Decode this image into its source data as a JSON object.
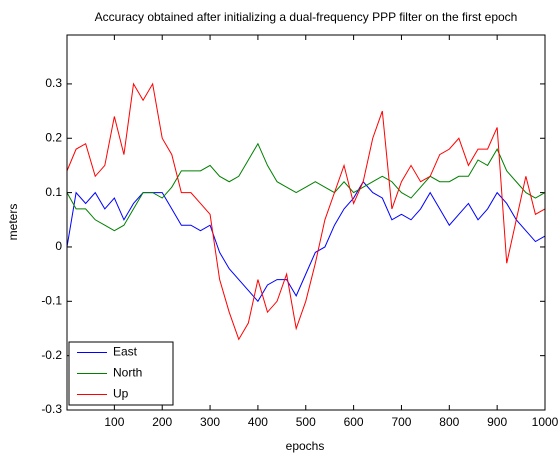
{
  "chart_data": {
    "type": "line",
    "title": "Accuracy obtained after initializing a dual-frequency PPP filter on the first epoch",
    "x_label": "epochs",
    "y_label": "meters",
    "x": [
      1,
      20,
      40,
      60,
      80,
      100,
      120,
      140,
      160,
      180,
      200,
      220,
      240,
      260,
      280,
      300,
      320,
      340,
      360,
      380,
      400,
      420,
      440,
      460,
      480,
      500,
      520,
      540,
      560,
      580,
      600,
      620,
      640,
      660,
      680,
      700,
      720,
      740,
      760,
      780,
      800,
      820,
      840,
      860,
      880,
      900,
      920,
      940,
      960,
      980,
      1000
    ],
    "series": [
      {
        "name": "East",
        "color": "#0000ff",
        "values": [
          0,
          0.1,
          0.08,
          0.1,
          0.07,
          0.09,
          0.05,
          0.08,
          0.1,
          0.1,
          0.1,
          0.07,
          0.04,
          0.04,
          0.03,
          0.04,
          -0.01,
          -0.04,
          -0.06,
          -0.08,
          -0.1,
          -0.07,
          -0.06,
          -0.06,
          -0.09,
          -0.05,
          -0.01,
          0,
          0.04,
          0.07,
          0.09,
          0.12,
          0.1,
          0.09,
          0.05,
          0.06,
          0.05,
          0.07,
          0.1,
          0.07,
          0.04,
          0.06,
          0.08,
          0.05,
          0.07,
          0.1,
          0.08,
          0.05,
          0.03,
          0.01,
          0.02
        ]
      },
      {
        "name": "North",
        "color": "#008000",
        "values": [
          0.1,
          0.07,
          0.07,
          0.05,
          0.04,
          0.03,
          0.04,
          0.07,
          0.1,
          0.1,
          0.09,
          0.11,
          0.14,
          0.14,
          0.14,
          0.15,
          0.13,
          0.12,
          0.13,
          0.16,
          0.19,
          0.15,
          0.12,
          0.11,
          0.1,
          0.11,
          0.12,
          0.11,
          0.1,
          0.12,
          0.1,
          0.11,
          0.12,
          0.13,
          0.12,
          0.1,
          0.09,
          0.11,
          0.13,
          0.12,
          0.12,
          0.13,
          0.13,
          0.16,
          0.15,
          0.18,
          0.14,
          0.12,
          0.1,
          0.09,
          0.1
        ]
      },
      {
        "name": "Up",
        "color": "#ff0000",
        "values": [
          0.14,
          0.18,
          0.19,
          0.13,
          0.15,
          0.24,
          0.17,
          0.3,
          0.27,
          0.3,
          0.2,
          0.17,
          0.1,
          0.1,
          0.08,
          0.06,
          -0.06,
          -0.12,
          -0.17,
          -0.14,
          -0.06,
          -0.12,
          -0.1,
          -0.05,
          -0.15,
          -0.1,
          -0.03,
          0.05,
          0.1,
          0.15,
          0.08,
          0.12,
          0.2,
          0.25,
          0.07,
          0.12,
          0.15,
          0.12,
          0.13,
          0.17,
          0.18,
          0.2,
          0.15,
          0.18,
          0.18,
          0.22,
          -0.03,
          0.05,
          0.13,
          0.06,
          0.07
        ]
      }
    ],
    "xlim": [
      1,
      1000
    ],
    "ylim": [
      -0.3,
      0.39
    ],
    "xticks": [
      100,
      200,
      300,
      400,
      500,
      600,
      700,
      800,
      900,
      1000
    ],
    "yticks": [
      -0.3,
      -0.2,
      -0.1,
      0,
      0.1,
      0.2,
      0.3
    ],
    "grid": false,
    "legend_position": "lower left"
  }
}
